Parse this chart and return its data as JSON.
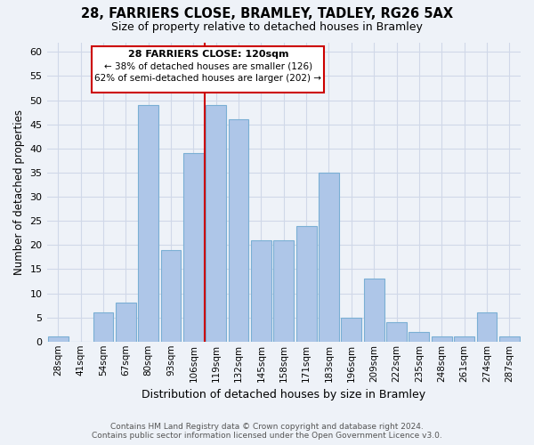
{
  "title": "28, FARRIERS CLOSE, BRAMLEY, TADLEY, RG26 5AX",
  "subtitle": "Size of property relative to detached houses in Bramley",
  "xlabel": "Distribution of detached houses by size in Bramley",
  "ylabel": "Number of detached properties",
  "footer1": "Contains HM Land Registry data © Crown copyright and database right 2024.",
  "footer2": "Contains public sector information licensed under the Open Government Licence v3.0.",
  "bin_labels": [
    "28sqm",
    "41sqm",
    "54sqm",
    "67sqm",
    "80sqm",
    "93sqm",
    "106sqm",
    "119sqm",
    "132sqm",
    "145sqm",
    "158sqm",
    "171sqm",
    "183sqm",
    "196sqm",
    "209sqm",
    "222sqm",
    "235sqm",
    "248sqm",
    "261sqm",
    "274sqm",
    "287sqm"
  ],
  "bar_values": [
    1,
    0,
    6,
    8,
    49,
    19,
    39,
    49,
    46,
    21,
    21,
    24,
    35,
    5,
    13,
    4,
    2,
    1,
    1,
    6,
    1
  ],
  "bar_color": "#aec6e8",
  "bar_edge_color": "#7aafd4",
  "highlight_index": 7,
  "highlight_line_color": "#cc0000",
  "ylim": [
    0,
    62
  ],
  "yticks": [
    0,
    5,
    10,
    15,
    20,
    25,
    30,
    35,
    40,
    45,
    50,
    55,
    60
  ],
  "annotation_title": "28 FARRIERS CLOSE: 120sqm",
  "annotation_line1": "← 38% of detached houses are smaller (126)",
  "annotation_line2": "62% of semi-detached houses are larger (202) →",
  "annotation_box_color": "#ffffff",
  "annotation_box_edge": "#cc0000",
  "grid_color": "#d0d8e8",
  "background_color": "#eef2f8"
}
